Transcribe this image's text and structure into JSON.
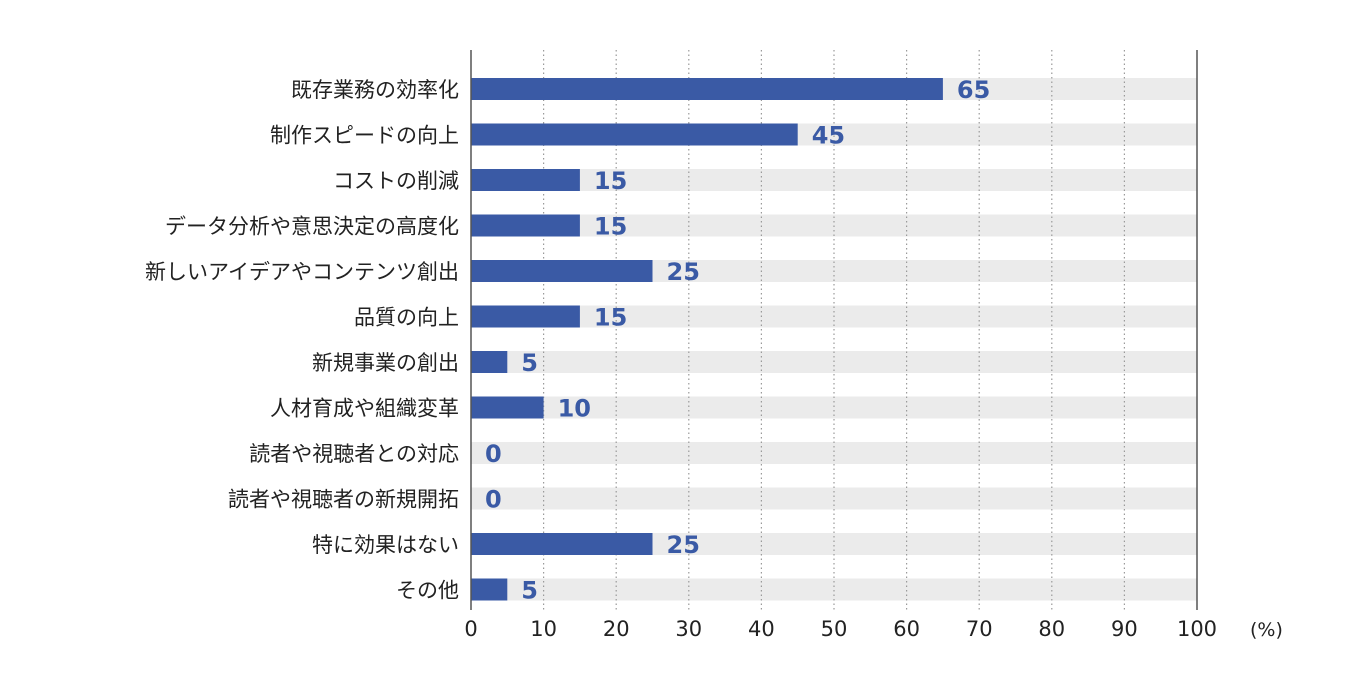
{
  "chart_data": {
    "type": "bar",
    "orientation": "horizontal",
    "categories": [
      "既存業務の効率化",
      "制作スピードの向上",
      "コストの削減",
      "データ分析や意思決定の高度化",
      "新しいアイデアやコンテンツ創出",
      "品質の向上",
      "新規事業の創出",
      "人材育成や組織変革",
      "読者や視聴者との対応",
      "読者や視聴者の新規開拓",
      "特に効果はない",
      "その他"
    ],
    "values": [
      65,
      45,
      15,
      15,
      25,
      15,
      5,
      10,
      0,
      0,
      25,
      5
    ],
    "xlim": [
      0,
      100
    ],
    "ticks": [
      0,
      10,
      20,
      30,
      40,
      50,
      60,
      70,
      80,
      90,
      100
    ],
    "tick_labels": [
      "0",
      "10",
      "20",
      "30",
      "40",
      "50",
      "60",
      "70",
      "80",
      "90",
      "100"
    ],
    "unit_label": "(%)",
    "title": "",
    "xlabel": "",
    "ylabel": "",
    "grid": "vertical dotted",
    "legend": "none",
    "colors": {
      "bar": "#3a5aa5",
      "track": "#ebebeb",
      "value_label": "#3a5aa5",
      "grid": "#9a9a9a",
      "axis": "#555555"
    }
  }
}
